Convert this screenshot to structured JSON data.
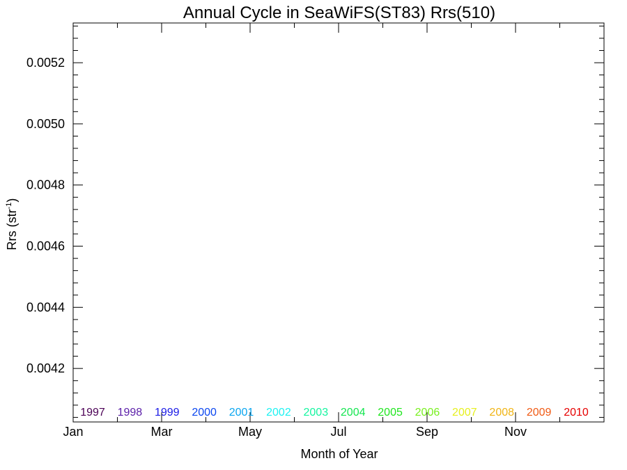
{
  "chart_data": {
    "type": "line",
    "title": "Annual Cycle in SeaWiFS(ST83) Rrs(510)",
    "xlabel": "Month of Year",
    "ylabel": "Rrs (str",
    "ylabel_sup": "-1",
    "ylabel_close": ")",
    "xlim": [
      0,
      12
    ],
    "ylim": [
      0.004025,
      0.00533
    ],
    "x_ticks": [
      {
        "label": "Jan",
        "value": 0
      },
      {
        "label": "Mar",
        "value": 2
      },
      {
        "label": "May",
        "value": 4
      },
      {
        "label": "Jul",
        "value": 6
      },
      {
        "label": "Sep",
        "value": 8
      },
      {
        "label": "Nov",
        "value": 10
      }
    ],
    "y_ticks": [
      {
        "label": "0.0042",
        "value": 0.0042
      },
      {
        "label": "0.0044",
        "value": 0.0044
      },
      {
        "label": "0.0046",
        "value": 0.0046
      },
      {
        "label": "0.0048",
        "value": 0.0048
      },
      {
        "label": "0.0050",
        "value": 0.005
      },
      {
        "label": "0.0052",
        "value": 0.0052
      }
    ],
    "grid": false,
    "legend_position": "bottom",
    "series": [
      {
        "name": "1997",
        "color": "#4b0055",
        "values": []
      },
      {
        "name": "1998",
        "color": "#5a1da8",
        "values": []
      },
      {
        "name": "1999",
        "color": "#1a1ae6",
        "values": []
      },
      {
        "name": "2000",
        "color": "#0a46f0",
        "values": []
      },
      {
        "name": "2001",
        "color": "#0aa6f0",
        "values": []
      },
      {
        "name": "2002",
        "color": "#1cf2f2",
        "values": []
      },
      {
        "name": "2003",
        "color": "#14f5a0",
        "values": []
      },
      {
        "name": "2004",
        "color": "#14e650",
        "values": []
      },
      {
        "name": "2005",
        "color": "#1ee61e",
        "values": []
      },
      {
        "name": "2006",
        "color": "#78f01e",
        "values": []
      },
      {
        "name": "2007",
        "color": "#e6f01e",
        "values": []
      },
      {
        "name": "2008",
        "color": "#f0b414",
        "values": []
      },
      {
        "name": "2009",
        "color": "#f05a14",
        "values": []
      },
      {
        "name": "2010",
        "color": "#e60000",
        "values": []
      }
    ]
  }
}
